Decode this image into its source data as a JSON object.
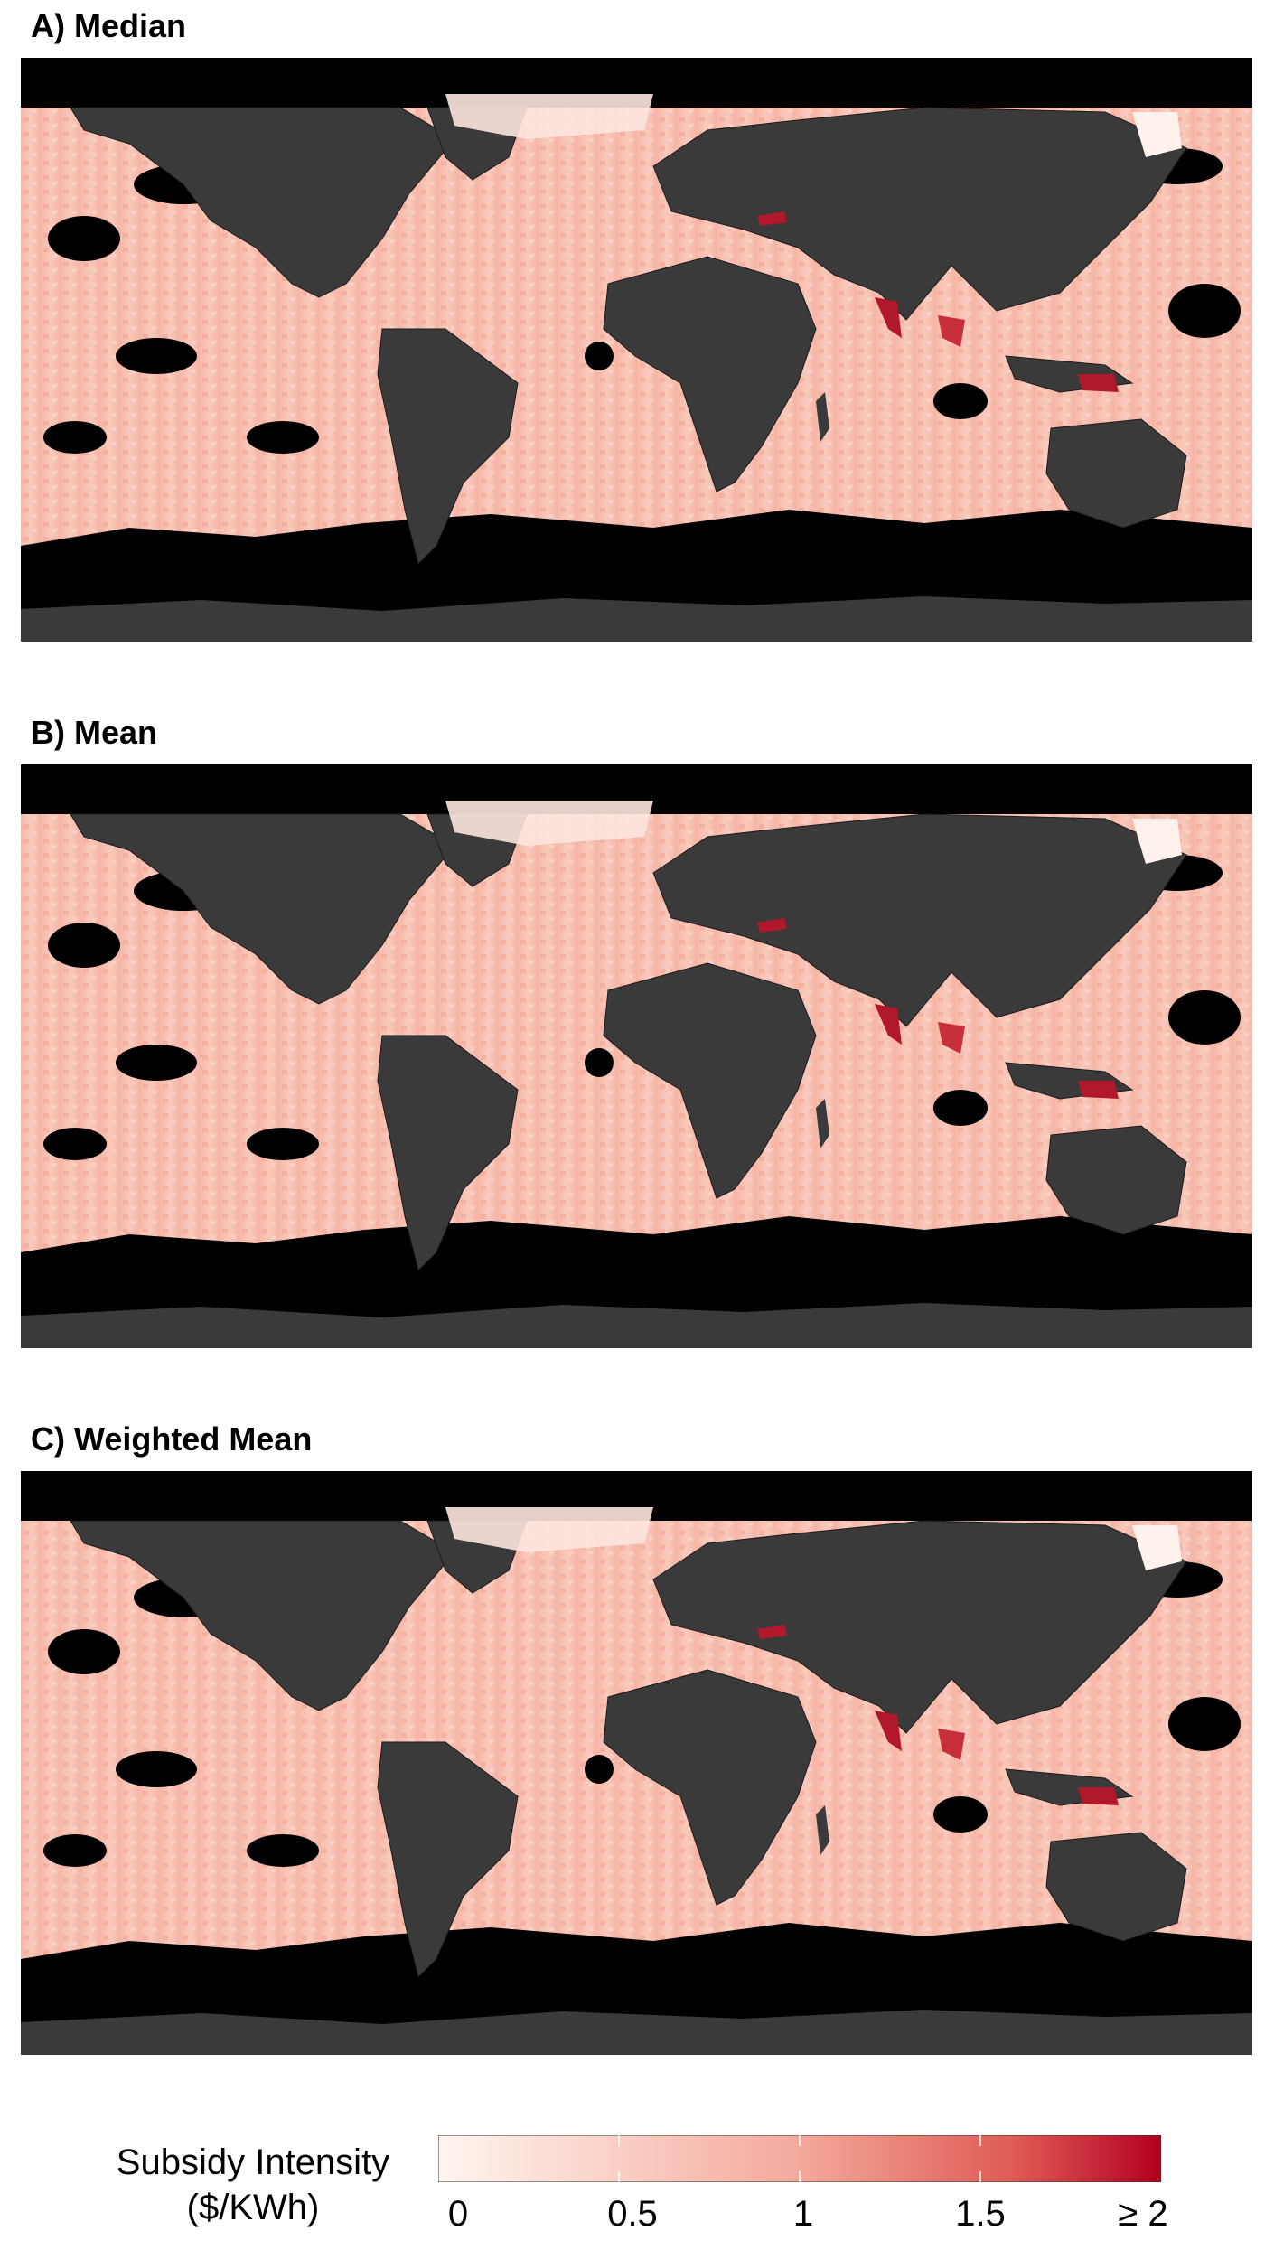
{
  "panels": [
    {
      "id": "A",
      "title": "A) Median"
    },
    {
      "id": "B",
      "title": "B) Mean"
    },
    {
      "id": "C",
      "title": "C) Weighted Mean"
    }
  ],
  "legend": {
    "title_line1": "Subsidy Intensity",
    "title_line2": "($/KWh)",
    "ticks": [
      "0",
      "0.5",
      "1",
      "1.5",
      "≥ 2"
    ],
    "range": [
      0,
      2
    ]
  },
  "colors": {
    "ocean_nodata": "#000000",
    "land": "#3a3a3a",
    "country_border": "#1a1a1a",
    "low": "#fff5f0",
    "mid": "#f4a99a",
    "high": "#b2182b"
  }
}
